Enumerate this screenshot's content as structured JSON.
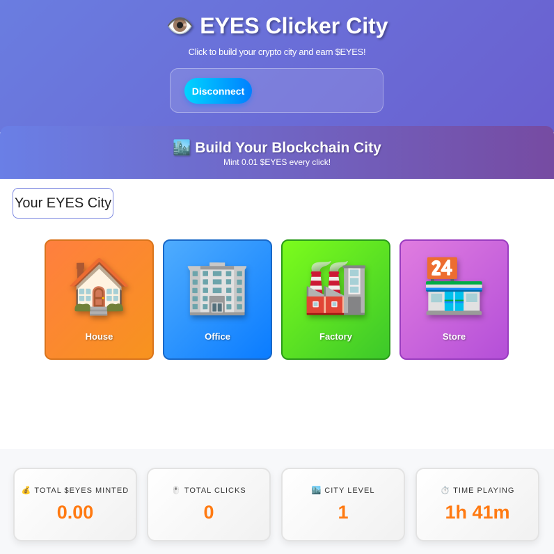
{
  "header": {
    "icon": "👁️",
    "title": "EYES Clicker City",
    "subtitle": "Click to build your crypto city and earn $EYES!",
    "disconnect_label": "Disconnect"
  },
  "banner": {
    "icon": "🏙️",
    "title": "Build Your Blockchain City",
    "subtitle": "Mint 0.01 $EYES every click!"
  },
  "city": {
    "label": "Your EYES City",
    "buildings": [
      {
        "label": "House",
        "icon": "🏠",
        "color": "#ff8c3a"
      },
      {
        "label": "Office",
        "icon": "🏢",
        "color": "#2f8cff"
      },
      {
        "label": "Factory",
        "icon": "🏭",
        "color": "#5fdc20"
      },
      {
        "label": "Store",
        "icon": "🏪",
        "color": "#c560d8"
      }
    ]
  },
  "stats": [
    {
      "icon": "💰",
      "label": "TOTAL $EYES MINTED",
      "value": "0.00"
    },
    {
      "icon": "🖱️",
      "label": "TOTAL CLICKS",
      "value": "0"
    },
    {
      "icon": "🏙️",
      "label": "CITY LEVEL",
      "value": "1"
    },
    {
      "icon": "⏱️",
      "label": "TIME PLAYING",
      "value": "1h 41m"
    }
  ],
  "colors": {
    "accent": "#ff7a12",
    "header_start": "#6a7de0",
    "header_end": "#764ba2"
  }
}
